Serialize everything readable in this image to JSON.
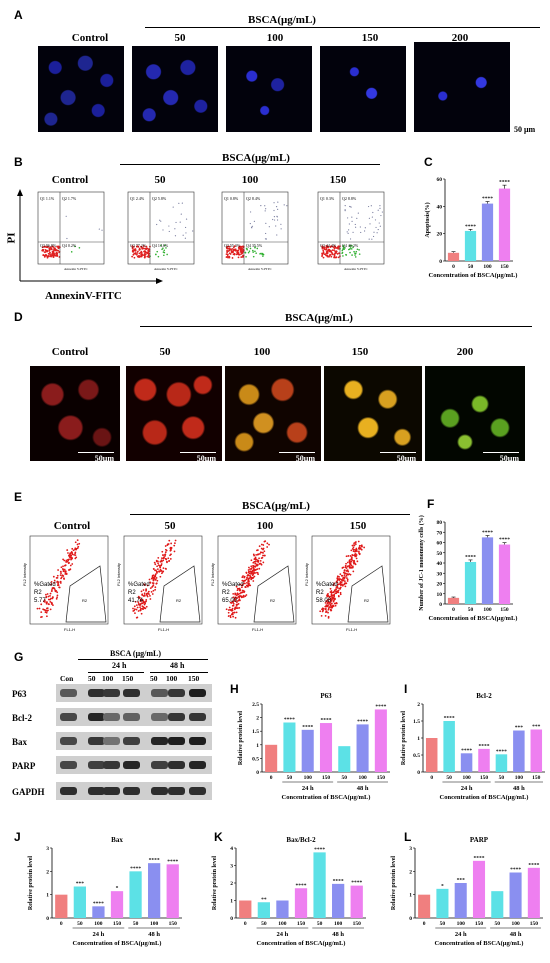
{
  "panelA": {
    "letter": "A",
    "group_title": "BSCA(μg/mL)",
    "labels": [
      "Control",
      "50",
      "100",
      "150",
      "200"
    ],
    "scale": "50 μm"
  },
  "panelB": {
    "letter": "B",
    "group_title": "BSCA(μg/mL)",
    "labels": [
      "Control",
      "50",
      "100",
      "150"
    ],
    "y_axis": "PI",
    "x_axis": "AnnexinV-FITC",
    "plots": [
      {
        "q1": "Q1 1.1%",
        "q2": "Q2 1.7%",
        "q3": "Q3 96.8%",
        "q4": "Q4 0.2%"
      },
      {
        "q1": "Q1 2.4%",
        "q2": "Q2 5.8%",
        "q3": "Q3 77.2%",
        "q4": "Q4 14.6%"
      },
      {
        "q1": "Q1 0.8%",
        "q2": "Q2 8.4%",
        "q3": "Q3 55.3%",
        "q4": "Q4 35.5%"
      },
      {
        "q1": "Q1 0.3%",
        "q2": "Q2 8.8%",
        "q3": "Q3 44.4%",
        "q4": "Q4 46.2%"
      }
    ],
    "axis_name": "Annexin V-FITC"
  },
  "panelC": {
    "letter": "C"
  },
  "panelD": {
    "letter": "D",
    "group_title": "BSCA(μg/mL)",
    "labels": [
      "Control",
      "50",
      "100",
      "150",
      "200"
    ],
    "scale": "50μm"
  },
  "panelE": {
    "letter": "E",
    "group_title": "BSCA(μg/mL)",
    "labels": [
      "Control",
      "50",
      "100",
      "150"
    ],
    "gate_label": "%Gated",
    "region": "R2",
    "values": [
      "5.77",
      "41.74",
      "65.00",
      "58.08"
    ],
    "x_axis": "FL1-H",
    "y_axis": "FL2 Intensity"
  },
  "panelF": {
    "letter": "F"
  },
  "panelG": {
    "letter": "G",
    "title": "BSCA (μg/mL)",
    "times": [
      "24 h",
      "48 h"
    ],
    "lanes": [
      "Con",
      "50",
      "100",
      "150",
      "50",
      "100",
      "150"
    ],
    "proteins": [
      "P63",
      "Bcl-2",
      "Bax",
      "PARP",
      "GAPDH"
    ]
  },
  "panelH": {
    "letter": "H"
  },
  "panelI": {
    "letter": "I"
  },
  "panelJ": {
    "letter": "J"
  },
  "panelK": {
    "letter": "K"
  },
  "panelL": {
    "letter": "L"
  },
  "chart_data": [
    {
      "id": "C",
      "type": "bar",
      "categories": [
        "0",
        "50",
        "100",
        "150"
      ],
      "values": [
        6,
        22,
        42,
        53
      ],
      "errors": [
        0.8,
        1.2,
        1.5,
        2.5
      ],
      "sig": [
        "",
        "****",
        "****",
        "****"
      ],
      "colors": [
        "#f07f7f",
        "#5ce1e6",
        "#8a8ff0",
        "#ee7ff0"
      ],
      "ylabel": "Apoptosis(%)",
      "xlabel": "Concentration of BSCA(μg/mL)",
      "ylim": [
        0,
        60
      ],
      "yticks": [
        0,
        20,
        40,
        60
      ]
    },
    {
      "id": "F",
      "type": "bar",
      "categories": [
        "0",
        "50",
        "100",
        "150"
      ],
      "values": [
        6,
        41,
        65,
        58
      ],
      "errors": [
        0.8,
        2.0,
        1.8,
        1.8
      ],
      "sig": [
        "",
        "****",
        "****",
        "****"
      ],
      "colors": [
        "#f07f7f",
        "#5ce1e6",
        "#8a8ff0",
        "#ee7ff0"
      ],
      "ylabel": "Number of JC-1 monomeny cells (%)",
      "xlabel": "Concentration of BSCA(μg/mL)",
      "ylim": [
        0,
        80
      ],
      "yticks": [
        0,
        10,
        20,
        30,
        40,
        50,
        60,
        70,
        80
      ]
    },
    {
      "id": "H",
      "type": "bar",
      "title": "P63",
      "categories": [
        "0",
        "50",
        "100",
        "150",
        "50",
        "100",
        "150"
      ],
      "values": [
        1.0,
        1.82,
        1.55,
        1.8,
        0.95,
        1.75,
        2.3
      ],
      "sig": [
        "",
        "****",
        "****",
        "****",
        "",
        "****",
        "****"
      ],
      "ylim": [
        0,
        2.5
      ],
      "yticks": [
        0,
        0.5,
        1.0,
        1.5,
        2.0,
        2.5
      ],
      "ylabel": "Relative protein level",
      "xlabel": "Concentration of BSCA(μg/mL)"
    },
    {
      "id": "I",
      "type": "bar",
      "title": "Bcl-2",
      "categories": [
        "0",
        "50",
        "100",
        "150",
        "50",
        "100",
        "150"
      ],
      "values": [
        1.0,
        1.5,
        0.55,
        0.68,
        0.52,
        1.22,
        1.25
      ],
      "sig": [
        "",
        "****",
        "****",
        "****",
        "****",
        "***",
        "***"
      ],
      "ylim": [
        0,
        2.0
      ],
      "yticks": [
        0,
        0.5,
        1.0,
        1.5,
        2.0
      ],
      "ylabel": "Relative protein level",
      "xlabel": "Concentration of BSCA(μg/mL)"
    },
    {
      "id": "J",
      "type": "bar",
      "title": "Bax",
      "categories": [
        "0",
        "50",
        "100",
        "150",
        "50",
        "100",
        "150"
      ],
      "values": [
        1.0,
        1.35,
        0.5,
        1.15,
        2.0,
        2.35,
        2.3
      ],
      "sig": [
        "",
        "***",
        "****",
        "*",
        "****",
        "****",
        "****"
      ],
      "ylim": [
        0,
        3
      ],
      "yticks": [
        0,
        1,
        2,
        3
      ],
      "ylabel": "Relative protein level",
      "xlabel": "Concentration of BSCA(μg/mL)"
    },
    {
      "id": "K",
      "type": "bar",
      "title": "Bax/Bcl-2",
      "categories": [
        "0",
        "50",
        "100",
        "150",
        "50",
        "100",
        "150"
      ],
      "values": [
        1.0,
        0.9,
        1.0,
        1.7,
        3.75,
        1.95,
        1.85
      ],
      "sig": [
        "",
        "**",
        "",
        "****",
        "****",
        "****",
        "****"
      ],
      "ylim": [
        0,
        4
      ],
      "yticks": [
        0,
        1,
        2,
        3,
        4
      ],
      "ylabel": "Relative protein level",
      "xlabel": "Concentration of BSCA(μg/mL)"
    },
    {
      "id": "L",
      "type": "bar",
      "title": "PARP",
      "categories": [
        "0",
        "50",
        "100",
        "150",
        "50",
        "100",
        "150"
      ],
      "values": [
        1.0,
        1.25,
        1.5,
        2.45,
        1.15,
        1.95,
        2.15
      ],
      "sig": [
        "",
        "*",
        "***",
        "****",
        "",
        "****",
        "****"
      ],
      "ylim": [
        0,
        3
      ],
      "yticks": [
        0,
        1,
        2,
        3
      ],
      "ylabel": "Relative protein level",
      "xlabel": "Concentration of BSCA(μg/mL)"
    }
  ],
  "bar_colors7": [
    "#f07f7f",
    "#5ce1e6",
    "#8a8ff0",
    "#ee7ff0",
    "#5ce1e6",
    "#8a8ff0",
    "#ee7ff0"
  ],
  "group_times": [
    "24 h",
    "48 h"
  ]
}
